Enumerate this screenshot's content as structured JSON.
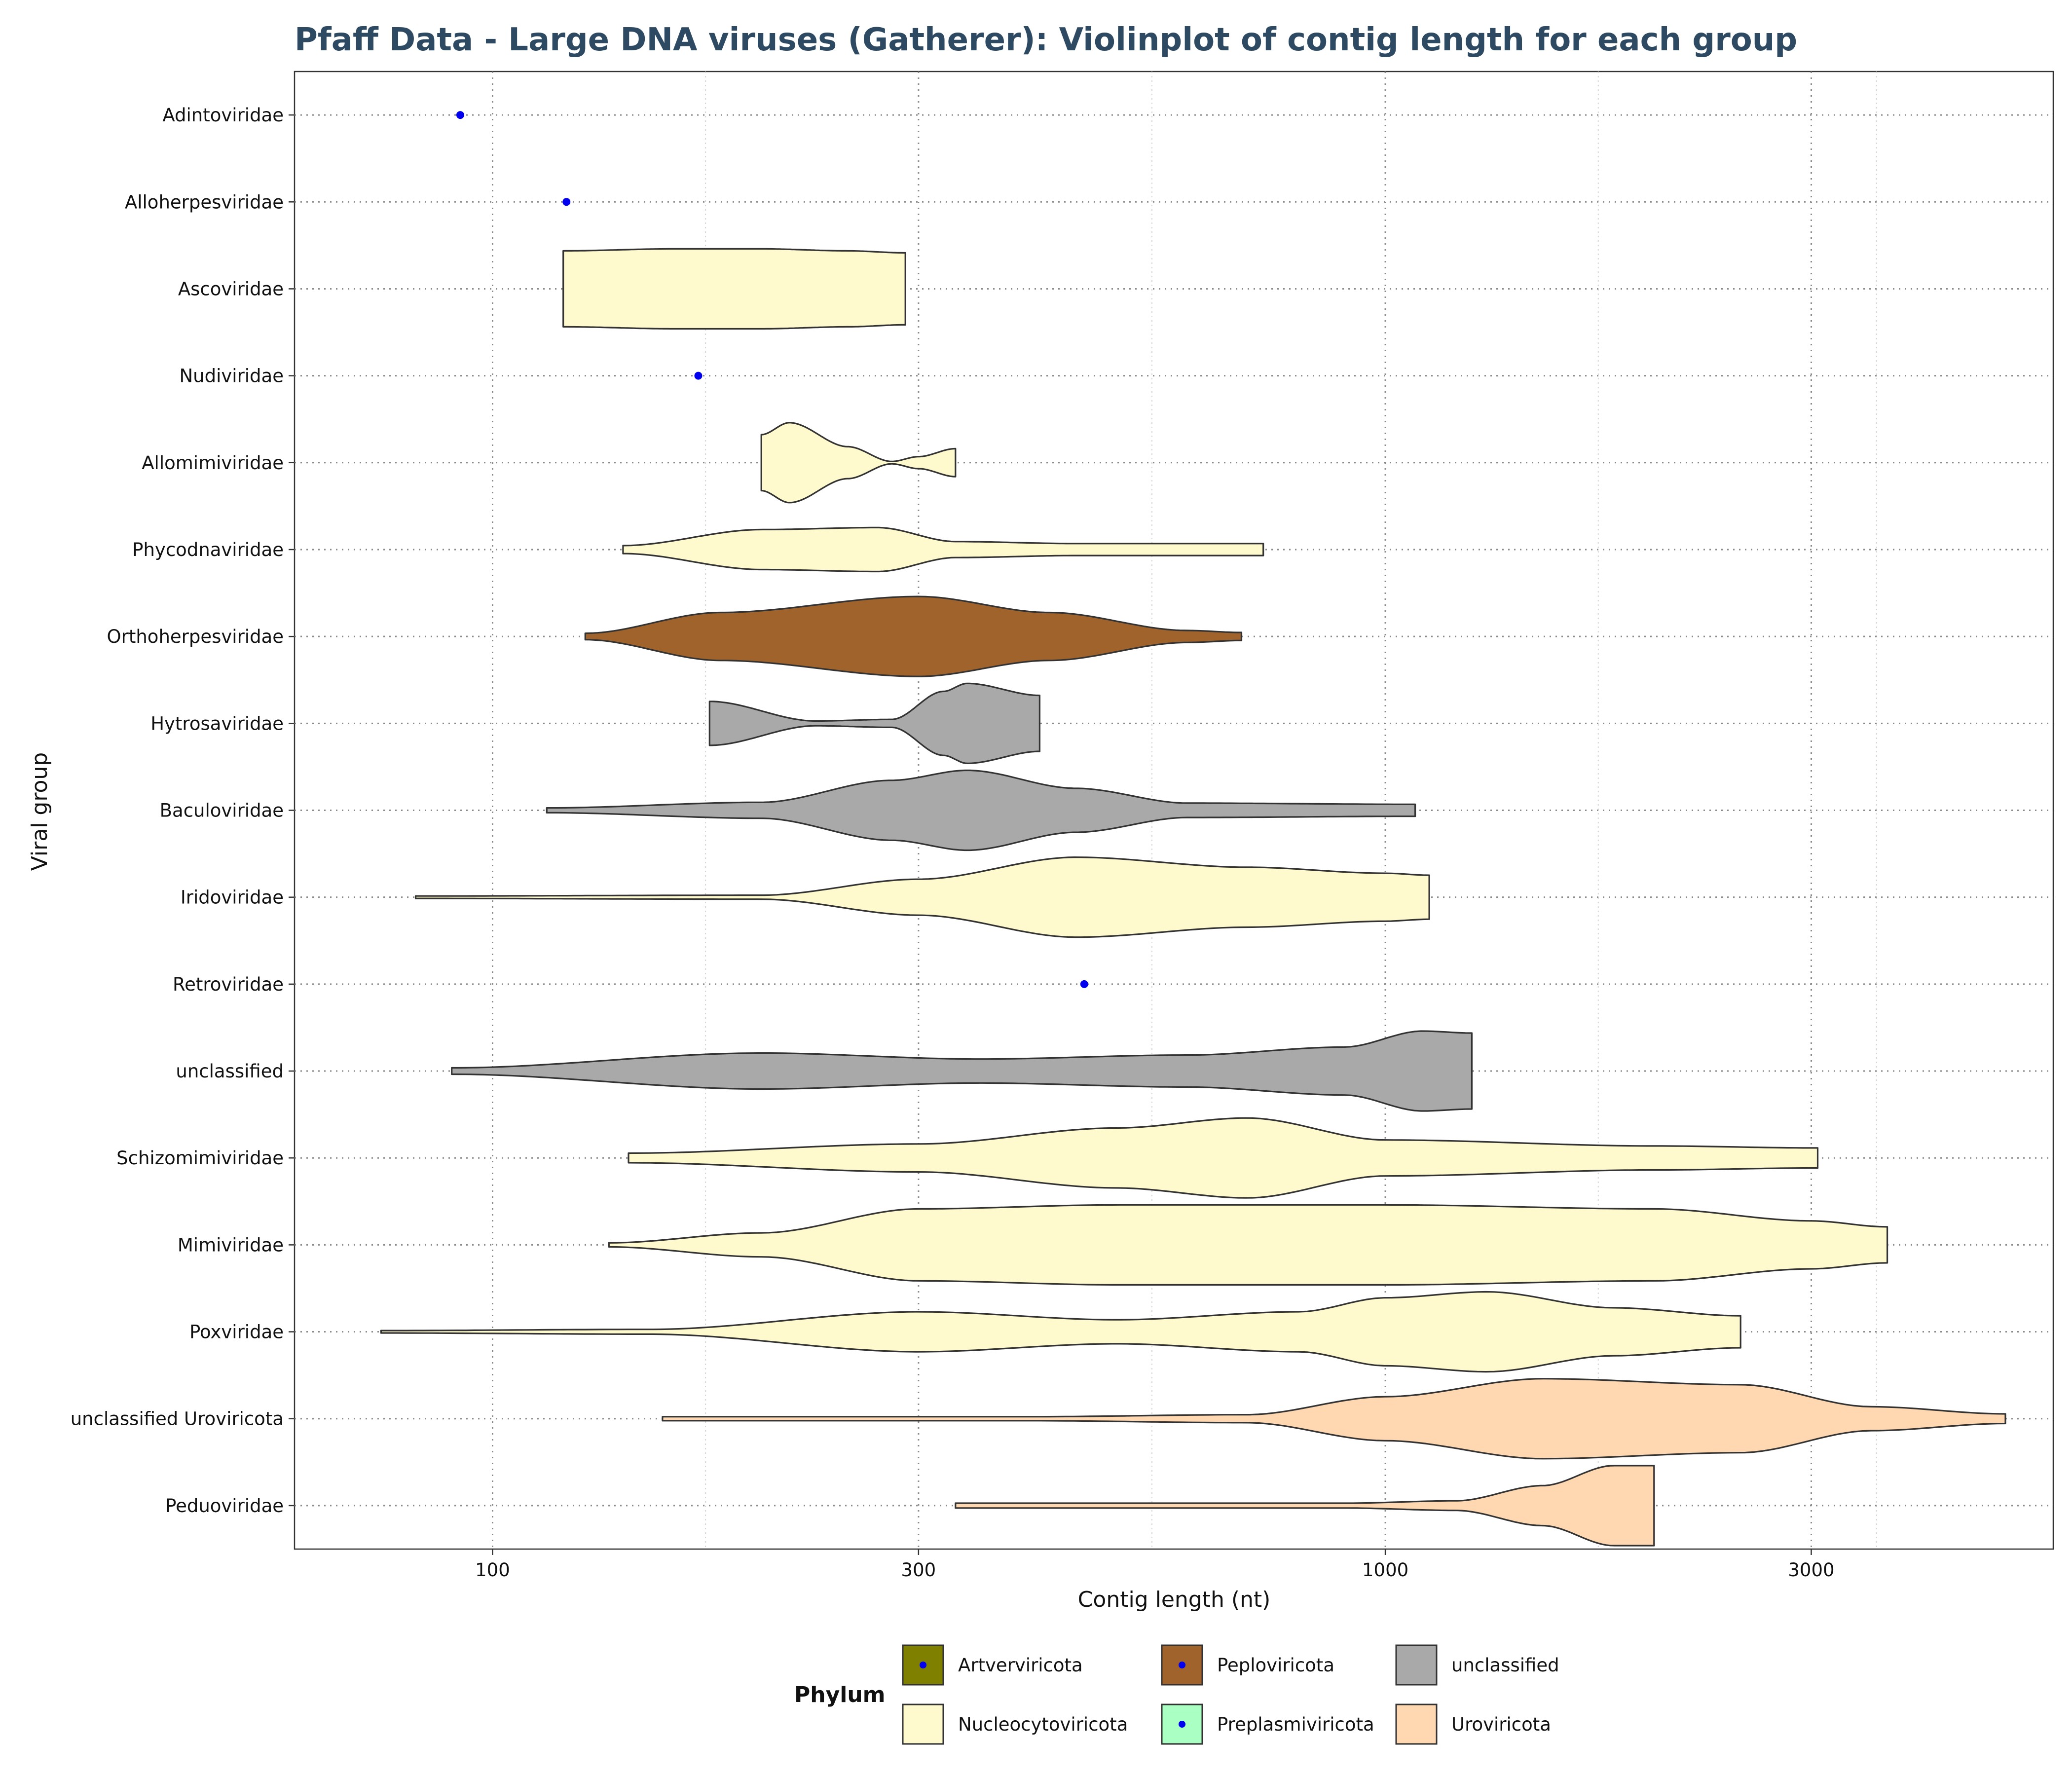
{
  "chart_data": {
    "type": "violin",
    "title": "Pfaff Data - Large DNA viruses (Gatherer): Violinplot of contig length for each group",
    "xlabel": "Contig length (nt)",
    "ylabel": "Viral group",
    "x_scale": "log10",
    "xlim": [
      60,
      5600
    ],
    "x_ticks": [
      100,
      300,
      1000,
      3000
    ],
    "x_tick_labels": [
      "100",
      "300",
      "1000",
      "3000"
    ],
    "grid": true,
    "groups": [
      {
        "name": "Peduoviridae",
        "phylum": "Uroviricota",
        "kind": "violin",
        "min": 330,
        "max": 2000,
        "density": [
          [
            330,
            0.06
          ],
          [
            600,
            0.06
          ],
          [
            900,
            0.06
          ],
          [
            1200,
            0.12
          ],
          [
            1500,
            0.5
          ],
          [
            1800,
            1
          ],
          [
            2000,
            1
          ]
        ]
      },
      {
        "name": "unclassified Uroviricota",
        "phylum": "Uroviricota",
        "kind": "violin",
        "min": 155,
        "max": 4950,
        "density": [
          [
            155,
            0.05
          ],
          [
            400,
            0.05
          ],
          [
            700,
            0.1
          ],
          [
            1000,
            0.55
          ],
          [
            1500,
            1
          ],
          [
            2500,
            0.85
          ],
          [
            3500,
            0.3
          ],
          [
            4950,
            0.12
          ]
        ]
      },
      {
        "name": "Poxviridae",
        "phylum": "Nucleocytoviricota",
        "kind": "violin",
        "min": 75,
        "max": 2500,
        "density": [
          [
            75,
            0.03
          ],
          [
            150,
            0.06
          ],
          [
            300,
            0.5
          ],
          [
            500,
            0.3
          ],
          [
            800,
            0.5
          ],
          [
            1000,
            0.85
          ],
          [
            1300,
            1
          ],
          [
            1800,
            0.6
          ],
          [
            2500,
            0.4
          ]
        ]
      },
      {
        "name": "Mimiviridae",
        "phylum": "Nucleocytoviricota",
        "kind": "violin",
        "min": 135,
        "max": 3650,
        "density": [
          [
            135,
            0.05
          ],
          [
            200,
            0.3
          ],
          [
            300,
            0.9
          ],
          [
            500,
            1
          ],
          [
            1000,
            1
          ],
          [
            2000,
            0.9
          ],
          [
            3000,
            0.6
          ],
          [
            3650,
            0.45
          ]
        ]
      },
      {
        "name": "Schizomimiviridae",
        "phylum": "Nucleocytoviricota",
        "kind": "violin",
        "min": 142,
        "max": 3050,
        "density": [
          [
            142,
            0.12
          ],
          [
            300,
            0.35
          ],
          [
            500,
            0.75
          ],
          [
            700,
            1
          ],
          [
            1000,
            0.45
          ],
          [
            2000,
            0.3
          ],
          [
            3050,
            0.25
          ]
        ]
      },
      {
        "name": "unclassified",
        "phylum": "unclassified",
        "kind": "violin",
        "min": 90,
        "max": 1250,
        "density": [
          [
            90,
            0.08
          ],
          [
            200,
            0.45
          ],
          [
            350,
            0.3
          ],
          [
            600,
            0.4
          ],
          [
            900,
            0.6
          ],
          [
            1100,
            1
          ],
          [
            1250,
            0.95
          ]
        ]
      },
      {
        "name": "Retroviridae",
        "phylum": "Peploviricota",
        "kind": "point",
        "value": 460
      },
      {
        "name": "Iridoviridae",
        "phylum": "Nucleocytoviricota",
        "kind": "violin",
        "min": 82,
        "max": 1120,
        "density": [
          [
            82,
            0.03
          ],
          [
            200,
            0.05
          ],
          [
            300,
            0.45
          ],
          [
            450,
            1
          ],
          [
            700,
            0.75
          ],
          [
            1000,
            0.6
          ],
          [
            1120,
            0.55
          ]
        ]
      },
      {
        "name": "Baculoviridae",
        "phylum": "unclassified",
        "kind": "violin",
        "min": 115,
        "max": 1080,
        "density": [
          [
            115,
            0.06
          ],
          [
            200,
            0.2
          ],
          [
            280,
            0.75
          ],
          [
            340,
            1
          ],
          [
            450,
            0.55
          ],
          [
            600,
            0.18
          ],
          [
            1080,
            0.15
          ]
        ]
      },
      {
        "name": "Hytrosaviridae",
        "phylum": "unclassified",
        "kind": "violin",
        "min": 175,
        "max": 410,
        "density": [
          [
            175,
            0.55
          ],
          [
            230,
            0.06
          ],
          [
            280,
            0.1
          ],
          [
            320,
            0.8
          ],
          [
            340,
            1
          ],
          [
            410,
            0.7
          ]
        ]
      },
      {
        "name": "Orthoherpesviridae",
        "phylum": "Peploviricota",
        "kind": "violin",
        "min": 127,
        "max": 690,
        "density": [
          [
            127,
            0.08
          ],
          [
            180,
            0.6
          ],
          [
            300,
            1
          ],
          [
            420,
            0.6
          ],
          [
            600,
            0.15
          ],
          [
            690,
            0.1
          ]
        ]
      },
      {
        "name": "Phycodnaviridae",
        "phylum": "Nucleocytoviricota",
        "kind": "violin",
        "min": 140,
        "max": 730,
        "density": [
          [
            140,
            0.1
          ],
          [
            200,
            0.5
          ],
          [
            270,
            0.55
          ],
          [
            330,
            0.2
          ],
          [
            450,
            0.15
          ],
          [
            730,
            0.15
          ]
        ]
      },
      {
        "name": "Allomimiviridae",
        "phylum": "Nucleocytoviricota",
        "kind": "violin",
        "min": 200,
        "max": 330,
        "density": [
          [
            200,
            0.7
          ],
          [
            215,
            1
          ],
          [
            250,
            0.4
          ],
          [
            280,
            0.03
          ],
          [
            300,
            0.15
          ],
          [
            330,
            0.35
          ]
        ]
      },
      {
        "name": "Nudiviridae",
        "phylum": "Peploviricota",
        "kind": "point",
        "value": 170
      },
      {
        "name": "Ascoviridae",
        "phylum": "Nucleocytoviricota",
        "kind": "violin",
        "min": 120,
        "max": 290,
        "density": [
          [
            120,
            0.95
          ],
          [
            160,
            1
          ],
          [
            200,
            1
          ],
          [
            250,
            0.95
          ],
          [
            290,
            0.9
          ]
        ]
      },
      {
        "name": "Alloherpesviridae",
        "phylum": "Peploviricota",
        "kind": "point",
        "value": 121
      },
      {
        "name": "Adintoviridae",
        "phylum": "Preplasmiviricota",
        "kind": "point",
        "value": 92
      }
    ],
    "legend": {
      "title": "Phylum",
      "placement": "bottom",
      "items": [
        {
          "label": "Artverviricota",
          "color": "#808000",
          "point": true
        },
        {
          "label": "Peploviricota",
          "color": "#a0632b",
          "point": true
        },
        {
          "label": "unclassified",
          "color": "#a9a9a9",
          "point": false
        },
        {
          "label": "Nucleocytoviricota",
          "color": "#fffacd",
          "point": false
        },
        {
          "label": "Preplasmiviricota",
          "color": "#aaffc3",
          "point": true
        },
        {
          "label": "Uroviricota",
          "color": "#ffd8b1",
          "point": false
        }
      ]
    },
    "phylum_colors": {
      "Artverviricota": "#808000",
      "Peploviricota": "#a0632b",
      "unclassified": "#a9a9a9",
      "Nucleocytoviricota": "#fffacd",
      "Preplasmiviricota": "#aaffc3",
      "Uroviricota": "#ffd8b1"
    },
    "point_color": "#0000ee"
  }
}
